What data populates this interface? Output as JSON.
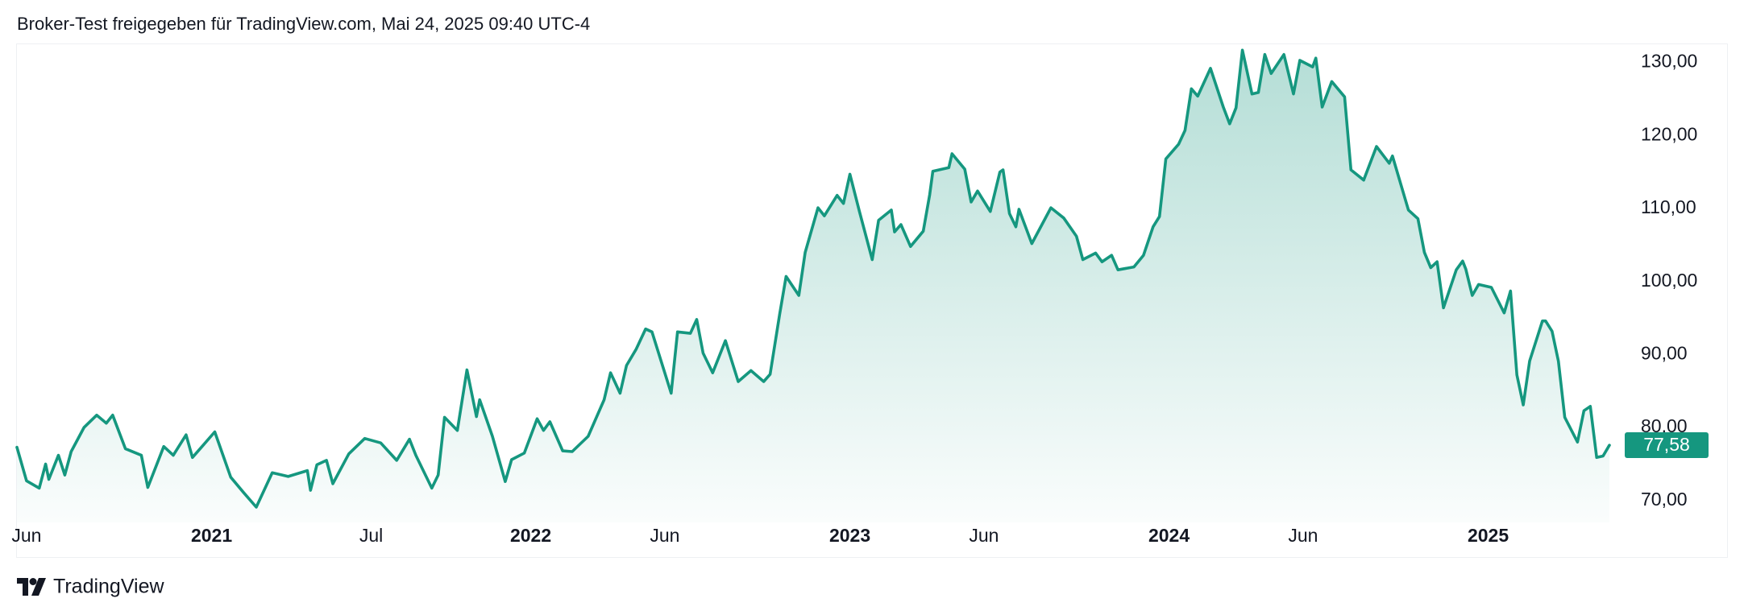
{
  "chart_data": {
    "type": "area-line",
    "title": "Broker-Test freigegeben für TradingView.com, Mai 24, 2025 09:40 UTC-4",
    "color": "#15977f",
    "xlim": [
      2020.39,
      2025.39
    ],
    "ylim": [
      67,
      132.5
    ],
    "yticks": [
      {
        "value": 70,
        "label": "70,00"
      },
      {
        "value": 80,
        "label": "80,00"
      },
      {
        "value": 90,
        "label": "90,00"
      },
      {
        "value": 100,
        "label": "100,00"
      },
      {
        "value": 110,
        "label": "110,00"
      },
      {
        "value": 120,
        "label": "120,00"
      },
      {
        "value": 130,
        "label": "130,00"
      }
    ],
    "xticks": [
      {
        "value": 2020.42,
        "label": "Jun"
      },
      {
        "value": 2021,
        "label": "2021"
      },
      {
        "value": 2021.5,
        "label": "Jul"
      },
      {
        "value": 2022,
        "label": "2022"
      },
      {
        "value": 2022.42,
        "label": "Jun"
      },
      {
        "value": 2023,
        "label": "2023"
      },
      {
        "value": 2023.42,
        "label": "Jun"
      },
      {
        "value": 2024,
        "label": "2024"
      },
      {
        "value": 2024.42,
        "label": "Jun"
      },
      {
        "value": 2025,
        "label": "2025"
      }
    ],
    "current_price": {
      "value": 77.58,
      "label": "77,58"
    },
    "x": [
      2020.39,
      2020.42,
      2020.46,
      2020.48,
      2020.49,
      2020.52,
      2020.54,
      2020.56,
      2020.6,
      2020.64,
      2020.67,
      2020.69,
      2020.73,
      2020.78,
      2020.8,
      2020.85,
      2020.88,
      2020.92,
      2020.94,
      2021.01,
      2021.06,
      2021.1,
      2021.14,
      2021.19,
      2021.24,
      2021.3,
      2021.31,
      2021.33,
      2021.36,
      2021.38,
      2021.43,
      2021.48,
      2021.53,
      2021.58,
      2021.62,
      2021.64,
      2021.69,
      2021.71,
      2021.73,
      2021.77,
      2021.8,
      2021.83,
      2021.84,
      2021.88,
      2021.92,
      2021.94,
      2021.98,
      2022.02,
      2022.04,
      2022.06,
      2022.1,
      2022.13,
      2022.18,
      2022.23,
      2022.25,
      2022.28,
      2022.3,
      2022.33,
      2022.36,
      2022.38,
      2022.44,
      2022.46,
      2022.5,
      2022.52,
      2022.54,
      2022.57,
      2022.61,
      2022.65,
      2022.69,
      2022.73,
      2022.75,
      2022.78,
      2022.8,
      2022.84,
      2022.86,
      2022.9,
      2022.92,
      2022.96,
      2022.98,
      2023.0,
      2023.03,
      2023.07,
      2023.09,
      2023.13,
      2023.14,
      2023.16,
      2023.19,
      2023.23,
      2023.25,
      2023.26,
      2023.31,
      2023.32,
      2023.36,
      2023.38,
      2023.4,
      2023.44,
      2023.47,
      2023.48,
      2023.5,
      2023.52,
      2023.53,
      2023.57,
      2023.63,
      2023.67,
      2023.71,
      2023.73,
      2023.77,
      2023.79,
      2023.82,
      2023.84,
      2023.89,
      2023.92,
      2023.95,
      2023.97,
      2023.99,
      2024.03,
      2024.05,
      2024.07,
      2024.09,
      2024.13,
      2024.17,
      2024.19,
      2024.21,
      2024.23,
      2024.26,
      2024.28,
      2024.3,
      2024.32,
      2024.36,
      2024.39,
      2024.41,
      2024.45,
      2024.46,
      2024.48,
      2024.51,
      2024.55,
      2024.57,
      2024.61,
      2024.65,
      2024.69,
      2024.7,
      2024.75,
      2024.78,
      2024.8,
      2024.82,
      2024.84,
      2024.86,
      2024.9,
      2024.92,
      2024.93,
      2024.95,
      2024.97,
      2025.01,
      2025.05,
      2025.07,
      2025.09,
      2025.11,
      2025.13,
      2025.17,
      2025.18,
      2025.2,
      2025.22,
      2025.24,
      2025.28,
      2025.3,
      2025.32,
      2025.34,
      2025.36,
      2025.38
    ],
    "values": [
      77.3,
      72.7,
      71.7,
      75.0,
      72.9,
      76.2,
      73.5,
      76.7,
      80.0,
      81.7,
      80.6,
      81.7,
      77.1,
      76.2,
      71.8,
      77.4,
      76.2,
      79.0,
      75.9,
      79.4,
      73.2,
      71.1,
      69.1,
      73.8,
      73.3,
      74.1,
      71.4,
      74.9,
      75.5,
      72.3,
      76.4,
      78.5,
      77.9,
      75.5,
      78.4,
      76.2,
      71.7,
      73.5,
      81.4,
      79.6,
      87.9,
      81.5,
      83.8,
      78.8,
      72.6,
      75.6,
      76.5,
      81.2,
      79.6,
      80.8,
      76.8,
      76.7,
      78.8,
      83.8,
      87.5,
      84.7,
      88.5,
      90.7,
      93.5,
      93.1,
      84.7,
      93.1,
      92.9,
      94.8,
      90.2,
      87.5,
      91.9,
      86.3,
      87.8,
      86.3,
      87.3,
      95.5,
      100.7,
      98.1,
      104.0,
      110.1,
      109.0,
      111.8,
      110.7,
      114.7,
      109.6,
      103.0,
      108.4,
      109.8,
      106.8,
      107.8,
      104.8,
      106.9,
      111.9,
      115.1,
      115.6,
      117.5,
      115.4,
      110.9,
      112.4,
      109.6,
      115.0,
      115.3,
      109.3,
      107.5,
      109.9,
      105.2,
      110.1,
      108.7,
      106.2,
      103.0,
      103.9,
      102.7,
      103.6,
      101.6,
      102.0,
      103.6,
      107.5,
      108.9,
      116.8,
      118.8,
      120.7,
      126.4,
      125.4,
      129.2,
      123.9,
      121.6,
      123.8,
      131.7,
      125.7,
      125.9,
      131.1,
      128.5,
      131.1,
      125.7,
      130.3,
      129.4,
      130.6,
      123.9,
      127.4,
      125.3,
      115.3,
      113.9,
      118.5,
      116.2,
      117.2,
      109.8,
      108.6,
      104.0,
      101.9,
      102.7,
      96.4,
      101.6,
      102.8,
      101.7,
      98.1,
      99.6,
      99.2,
      95.7,
      98.7,
      87.2,
      83.1,
      89.1,
      94.6,
      94.6,
      93.2,
      89.1,
      81.4,
      78.0,
      82.3,
      82.9,
      75.9,
      76.1,
      77.58
    ]
  },
  "footer": {
    "brand": "TradingView"
  }
}
